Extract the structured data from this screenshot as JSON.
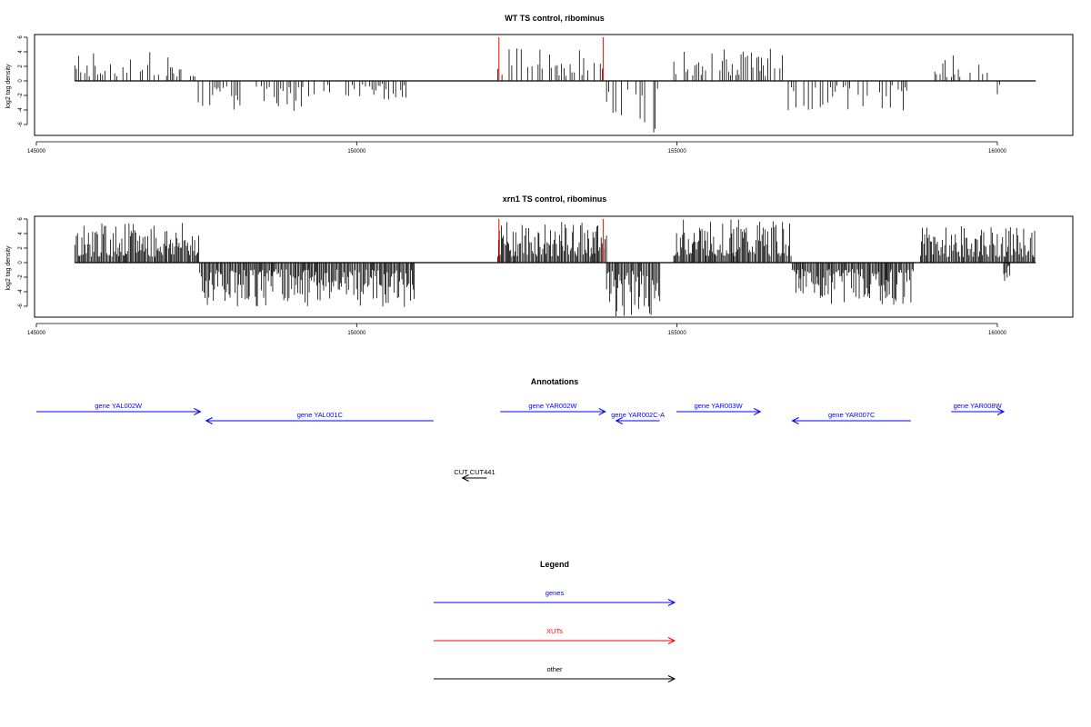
{
  "chart_data": [
    {
      "type": "bar",
      "title": "WT TS control, ribominus",
      "ylabel": "log2 tag density",
      "xlabel": "",
      "xlim": [
        145000,
        161200
      ],
      "ylim": [
        -8,
        6.5
      ],
      "xticks": [
        145000,
        150000,
        155000,
        160000
      ],
      "yticks": [
        -6,
        -4,
        -2,
        0,
        2,
        4,
        6
      ],
      "grid": false,
      "regions_plus": [
        [
          145600,
          147500,
          4
        ],
        [
          152200,
          153900,
          4.5
        ],
        [
          154950,
          156700,
          4.6
        ],
        [
          159000,
          159900,
          3.5
        ]
      ],
      "regions_minus": [
        [
          147500,
          149300,
          -4.4
        ],
        [
          149300,
          150800,
          -2.6
        ],
        [
          153900,
          154700,
          -7.2
        ],
        [
          156700,
          158600,
          -4.2
        ],
        [
          160000,
          160200,
          -2.2
        ]
      ],
      "highlight_x": [
        152220,
        153850
      ],
      "highlight_y": 6
    },
    {
      "type": "bar",
      "title": "xrn1 TS control, ribominus",
      "ylabel": "log2 tag density",
      "xlabel": "",
      "xlim": [
        145000,
        161200
      ],
      "ylim": [
        -8,
        6.5
      ],
      "xticks": [
        145000,
        150000,
        155000,
        160000
      ],
      "yticks": [
        -6,
        -4,
        -2,
        0,
        2,
        4,
        6
      ],
      "grid": false,
      "regions_plus": [
        [
          145600,
          147550,
          5.5
        ],
        [
          152200,
          153900,
          5.6
        ],
        [
          154950,
          156800,
          6
        ],
        [
          158800,
          160600,
          5
        ]
      ],
      "regions_minus": [
        [
          147550,
          150900,
          -6.2
        ],
        [
          153900,
          154750,
          -7.5
        ],
        [
          156800,
          158700,
          -5.8
        ],
        [
          160100,
          160200,
          -2.5
        ]
      ],
      "highlight_x": [
        152220,
        153850
      ],
      "highlight_y": 6
    }
  ],
  "annotations": {
    "title": "Annotations",
    "features": [
      {
        "label": "gene YAL002W",
        "start": 145000,
        "end": 147560,
        "strand": "+",
        "row": 0,
        "color": "#0000ff"
      },
      {
        "label": "gene YAL001C",
        "start": 147650,
        "end": 151200,
        "strand": "-",
        "row": 1,
        "color": "#0000ff"
      },
      {
        "label": "gene YAR002W",
        "start": 152240,
        "end": 153880,
        "strand": "+",
        "row": 0,
        "color": "#0000ff"
      },
      {
        "label": "gene YAR002C-A",
        "start": 154050,
        "end": 154730,
        "strand": "-",
        "row": 1,
        "color": "#0000ff"
      },
      {
        "label": "gene YAR003W",
        "start": 154990,
        "end": 156300,
        "strand": "+",
        "row": 0,
        "color": "#0000ff"
      },
      {
        "label": "gene YAR007C",
        "start": 156800,
        "end": 158650,
        "strand": "-",
        "row": 1,
        "color": "#0000ff"
      },
      {
        "label": "gene YAR008W",
        "start": 159280,
        "end": 160100,
        "strand": "+",
        "row": 0,
        "color": "#0000ff"
      },
      {
        "label": "CUT CUT441",
        "start": 151650,
        "end": 152030,
        "strand": "-",
        "row": 2,
        "color": "#000000"
      }
    ]
  },
  "legend": {
    "title": "Legend",
    "items": [
      {
        "label": "genes",
        "color": "#0000ff"
      },
      {
        "label": "XUTs",
        "color": "#ff0000"
      },
      {
        "label": "other",
        "color": "#000000"
      }
    ]
  }
}
